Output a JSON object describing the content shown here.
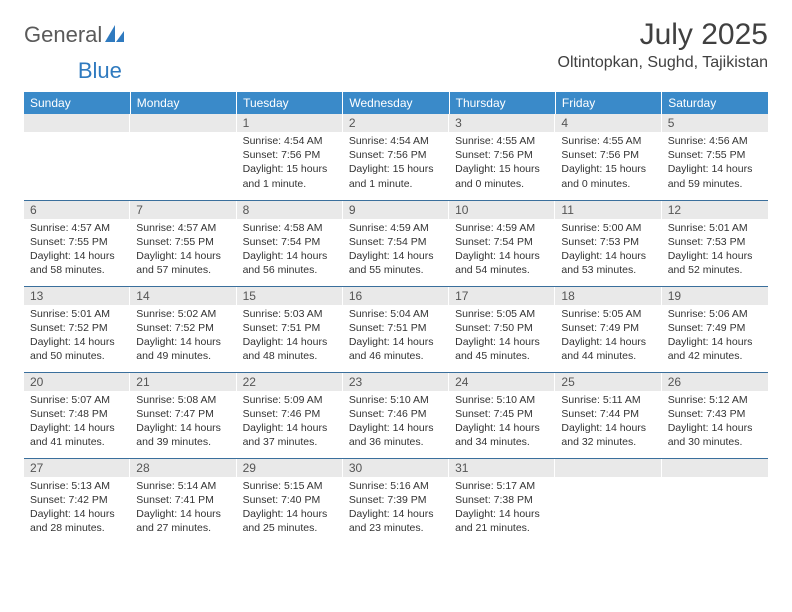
{
  "brand": {
    "part1": "General",
    "part2": "Blue"
  },
  "title": "July 2025",
  "location": "Oltintopkan, Sughd, Tajikistan",
  "colors": {
    "header_bg": "#3a8ac9",
    "header_text": "#ffffff",
    "daynum_bg": "#e9e9e9",
    "row_border": "#3a6f9c",
    "body_text": "#333333",
    "title_text": "#404040"
  },
  "columns": [
    "Sunday",
    "Monday",
    "Tuesday",
    "Wednesday",
    "Thursday",
    "Friday",
    "Saturday"
  ],
  "weeks": [
    [
      {
        "n": "",
        "lines": []
      },
      {
        "n": "",
        "lines": []
      },
      {
        "n": "1",
        "lines": [
          "Sunrise: 4:54 AM",
          "Sunset: 7:56 PM",
          "Daylight: 15 hours",
          "and 1 minute."
        ]
      },
      {
        "n": "2",
        "lines": [
          "Sunrise: 4:54 AM",
          "Sunset: 7:56 PM",
          "Daylight: 15 hours",
          "and 1 minute."
        ]
      },
      {
        "n": "3",
        "lines": [
          "Sunrise: 4:55 AM",
          "Sunset: 7:56 PM",
          "Daylight: 15 hours",
          "and 0 minutes."
        ]
      },
      {
        "n": "4",
        "lines": [
          "Sunrise: 4:55 AM",
          "Sunset: 7:56 PM",
          "Daylight: 15 hours",
          "and 0 minutes."
        ]
      },
      {
        "n": "5",
        "lines": [
          "Sunrise: 4:56 AM",
          "Sunset: 7:55 PM",
          "Daylight: 14 hours",
          "and 59 minutes."
        ]
      }
    ],
    [
      {
        "n": "6",
        "lines": [
          "Sunrise: 4:57 AM",
          "Sunset: 7:55 PM",
          "Daylight: 14 hours",
          "and 58 minutes."
        ]
      },
      {
        "n": "7",
        "lines": [
          "Sunrise: 4:57 AM",
          "Sunset: 7:55 PM",
          "Daylight: 14 hours",
          "and 57 minutes."
        ]
      },
      {
        "n": "8",
        "lines": [
          "Sunrise: 4:58 AM",
          "Sunset: 7:54 PM",
          "Daylight: 14 hours",
          "and 56 minutes."
        ]
      },
      {
        "n": "9",
        "lines": [
          "Sunrise: 4:59 AM",
          "Sunset: 7:54 PM",
          "Daylight: 14 hours",
          "and 55 minutes."
        ]
      },
      {
        "n": "10",
        "lines": [
          "Sunrise: 4:59 AM",
          "Sunset: 7:54 PM",
          "Daylight: 14 hours",
          "and 54 minutes."
        ]
      },
      {
        "n": "11",
        "lines": [
          "Sunrise: 5:00 AM",
          "Sunset: 7:53 PM",
          "Daylight: 14 hours",
          "and 53 minutes."
        ]
      },
      {
        "n": "12",
        "lines": [
          "Sunrise: 5:01 AM",
          "Sunset: 7:53 PM",
          "Daylight: 14 hours",
          "and 52 minutes."
        ]
      }
    ],
    [
      {
        "n": "13",
        "lines": [
          "Sunrise: 5:01 AM",
          "Sunset: 7:52 PM",
          "Daylight: 14 hours",
          "and 50 minutes."
        ]
      },
      {
        "n": "14",
        "lines": [
          "Sunrise: 5:02 AM",
          "Sunset: 7:52 PM",
          "Daylight: 14 hours",
          "and 49 minutes."
        ]
      },
      {
        "n": "15",
        "lines": [
          "Sunrise: 5:03 AM",
          "Sunset: 7:51 PM",
          "Daylight: 14 hours",
          "and 48 minutes."
        ]
      },
      {
        "n": "16",
        "lines": [
          "Sunrise: 5:04 AM",
          "Sunset: 7:51 PM",
          "Daylight: 14 hours",
          "and 46 minutes."
        ]
      },
      {
        "n": "17",
        "lines": [
          "Sunrise: 5:05 AM",
          "Sunset: 7:50 PM",
          "Daylight: 14 hours",
          "and 45 minutes."
        ]
      },
      {
        "n": "18",
        "lines": [
          "Sunrise: 5:05 AM",
          "Sunset: 7:49 PM",
          "Daylight: 14 hours",
          "and 44 minutes."
        ]
      },
      {
        "n": "19",
        "lines": [
          "Sunrise: 5:06 AM",
          "Sunset: 7:49 PM",
          "Daylight: 14 hours",
          "and 42 minutes."
        ]
      }
    ],
    [
      {
        "n": "20",
        "lines": [
          "Sunrise: 5:07 AM",
          "Sunset: 7:48 PM",
          "Daylight: 14 hours",
          "and 41 minutes."
        ]
      },
      {
        "n": "21",
        "lines": [
          "Sunrise: 5:08 AM",
          "Sunset: 7:47 PM",
          "Daylight: 14 hours",
          "and 39 minutes."
        ]
      },
      {
        "n": "22",
        "lines": [
          "Sunrise: 5:09 AM",
          "Sunset: 7:46 PM",
          "Daylight: 14 hours",
          "and 37 minutes."
        ]
      },
      {
        "n": "23",
        "lines": [
          "Sunrise: 5:10 AM",
          "Sunset: 7:46 PM",
          "Daylight: 14 hours",
          "and 36 minutes."
        ]
      },
      {
        "n": "24",
        "lines": [
          "Sunrise: 5:10 AM",
          "Sunset: 7:45 PM",
          "Daylight: 14 hours",
          "and 34 minutes."
        ]
      },
      {
        "n": "25",
        "lines": [
          "Sunrise: 5:11 AM",
          "Sunset: 7:44 PM",
          "Daylight: 14 hours",
          "and 32 minutes."
        ]
      },
      {
        "n": "26",
        "lines": [
          "Sunrise: 5:12 AM",
          "Sunset: 7:43 PM",
          "Daylight: 14 hours",
          "and 30 minutes."
        ]
      }
    ],
    [
      {
        "n": "27",
        "lines": [
          "Sunrise: 5:13 AM",
          "Sunset: 7:42 PM",
          "Daylight: 14 hours",
          "and 28 minutes."
        ]
      },
      {
        "n": "28",
        "lines": [
          "Sunrise: 5:14 AM",
          "Sunset: 7:41 PM",
          "Daylight: 14 hours",
          "and 27 minutes."
        ]
      },
      {
        "n": "29",
        "lines": [
          "Sunrise: 5:15 AM",
          "Sunset: 7:40 PM",
          "Daylight: 14 hours",
          "and 25 minutes."
        ]
      },
      {
        "n": "30",
        "lines": [
          "Sunrise: 5:16 AM",
          "Sunset: 7:39 PM",
          "Daylight: 14 hours",
          "and 23 minutes."
        ]
      },
      {
        "n": "31",
        "lines": [
          "Sunrise: 5:17 AM",
          "Sunset: 7:38 PM",
          "Daylight: 14 hours",
          "and 21 minutes."
        ]
      },
      {
        "n": "",
        "lines": []
      },
      {
        "n": "",
        "lines": []
      }
    ]
  ]
}
